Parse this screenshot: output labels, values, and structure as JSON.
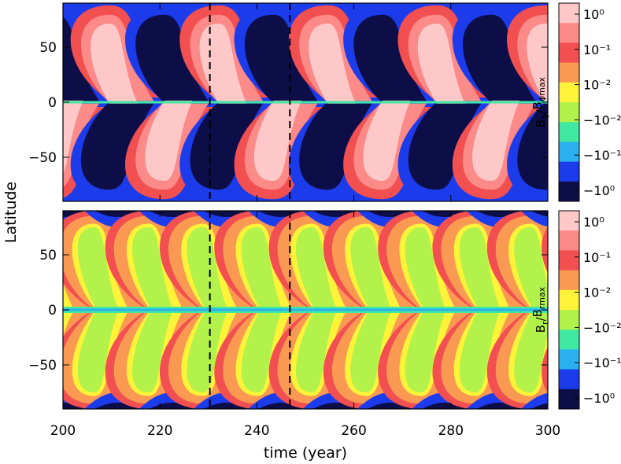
{
  "chart_data": [
    {
      "type": "heatmap",
      "panel": "top",
      "quantity": "toroidal field B_phi / B_phi,max",
      "xlim": [
        200,
        300
      ],
      "ylim": [
        -90,
        90
      ],
      "xticks": [
        200,
        220,
        240,
        260,
        280,
        300
      ],
      "xtick_labels": [
        "200",
        "220",
        "240",
        "260",
        "280",
        "300"
      ],
      "xlabel": "time (year)",
      "yticks": [
        50,
        0,
        -50
      ],
      "ytick_labels": [
        "50",
        "0",
        "−50"
      ],
      "ylabel": "Latitude",
      "cycle_period_years": 22.5,
      "wings_per_panel": 9,
      "dashed_lines_at_time": [
        230.3,
        246.8
      ],
      "colorbar": {
        "title_main": "B",
        "title_sub": "ϕ",
        "title_den_main": "B",
        "title_den_sub": "ϕmax",
        "tick_labels": [
          "10⁰",
          "10⁻¹",
          "10⁻²",
          "−10⁻²",
          "−10⁻¹",
          "−10⁰"
        ],
        "levels": [
          "#ffc8c8",
          "#fb8a88",
          "#f25050",
          "#fa9a52",
          "#fff33a",
          "#b2f24a",
          "#40e8a2",
          "#2ab0ee",
          "#1c3cec",
          "#0d0d48"
        ]
      }
    },
    {
      "type": "heatmap",
      "panel": "bottom",
      "quantity": "radial field B_r / B_r,max",
      "xlim": [
        200,
        300
      ],
      "ylim": [
        -90,
        90
      ],
      "xticks": [
        200,
        220,
        240,
        260,
        280,
        300
      ],
      "xtick_labels": [
        "200",
        "220",
        "240",
        "260",
        "280",
        "300"
      ],
      "xlabel": "time (year)",
      "yticks": [
        50,
        0,
        -50
      ],
      "ytick_labels": [
        "50",
        "0",
        "−50"
      ],
      "ylabel": "Latitude",
      "dashed_lines_at_time": [
        230.3,
        246.8
      ],
      "colorbar": {
        "title_main": "B",
        "title_sub": "r",
        "title_den_main": "B",
        "title_den_sub": "rmax",
        "tick_labels": [
          "10⁰",
          "10⁻¹",
          "10⁻²",
          "−10⁻²",
          "−10⁻¹",
          "−10⁰"
        ],
        "levels": [
          "#ffc8c8",
          "#fb8a88",
          "#f25050",
          "#fa9a52",
          "#fff33a",
          "#b2f24a",
          "#40e8a2",
          "#2ab0ee",
          "#1c3cec",
          "#0d0d48"
        ]
      }
    }
  ],
  "labels": {
    "shared_ylabel": "Latitude",
    "shared_xlabel": "time (year)"
  }
}
